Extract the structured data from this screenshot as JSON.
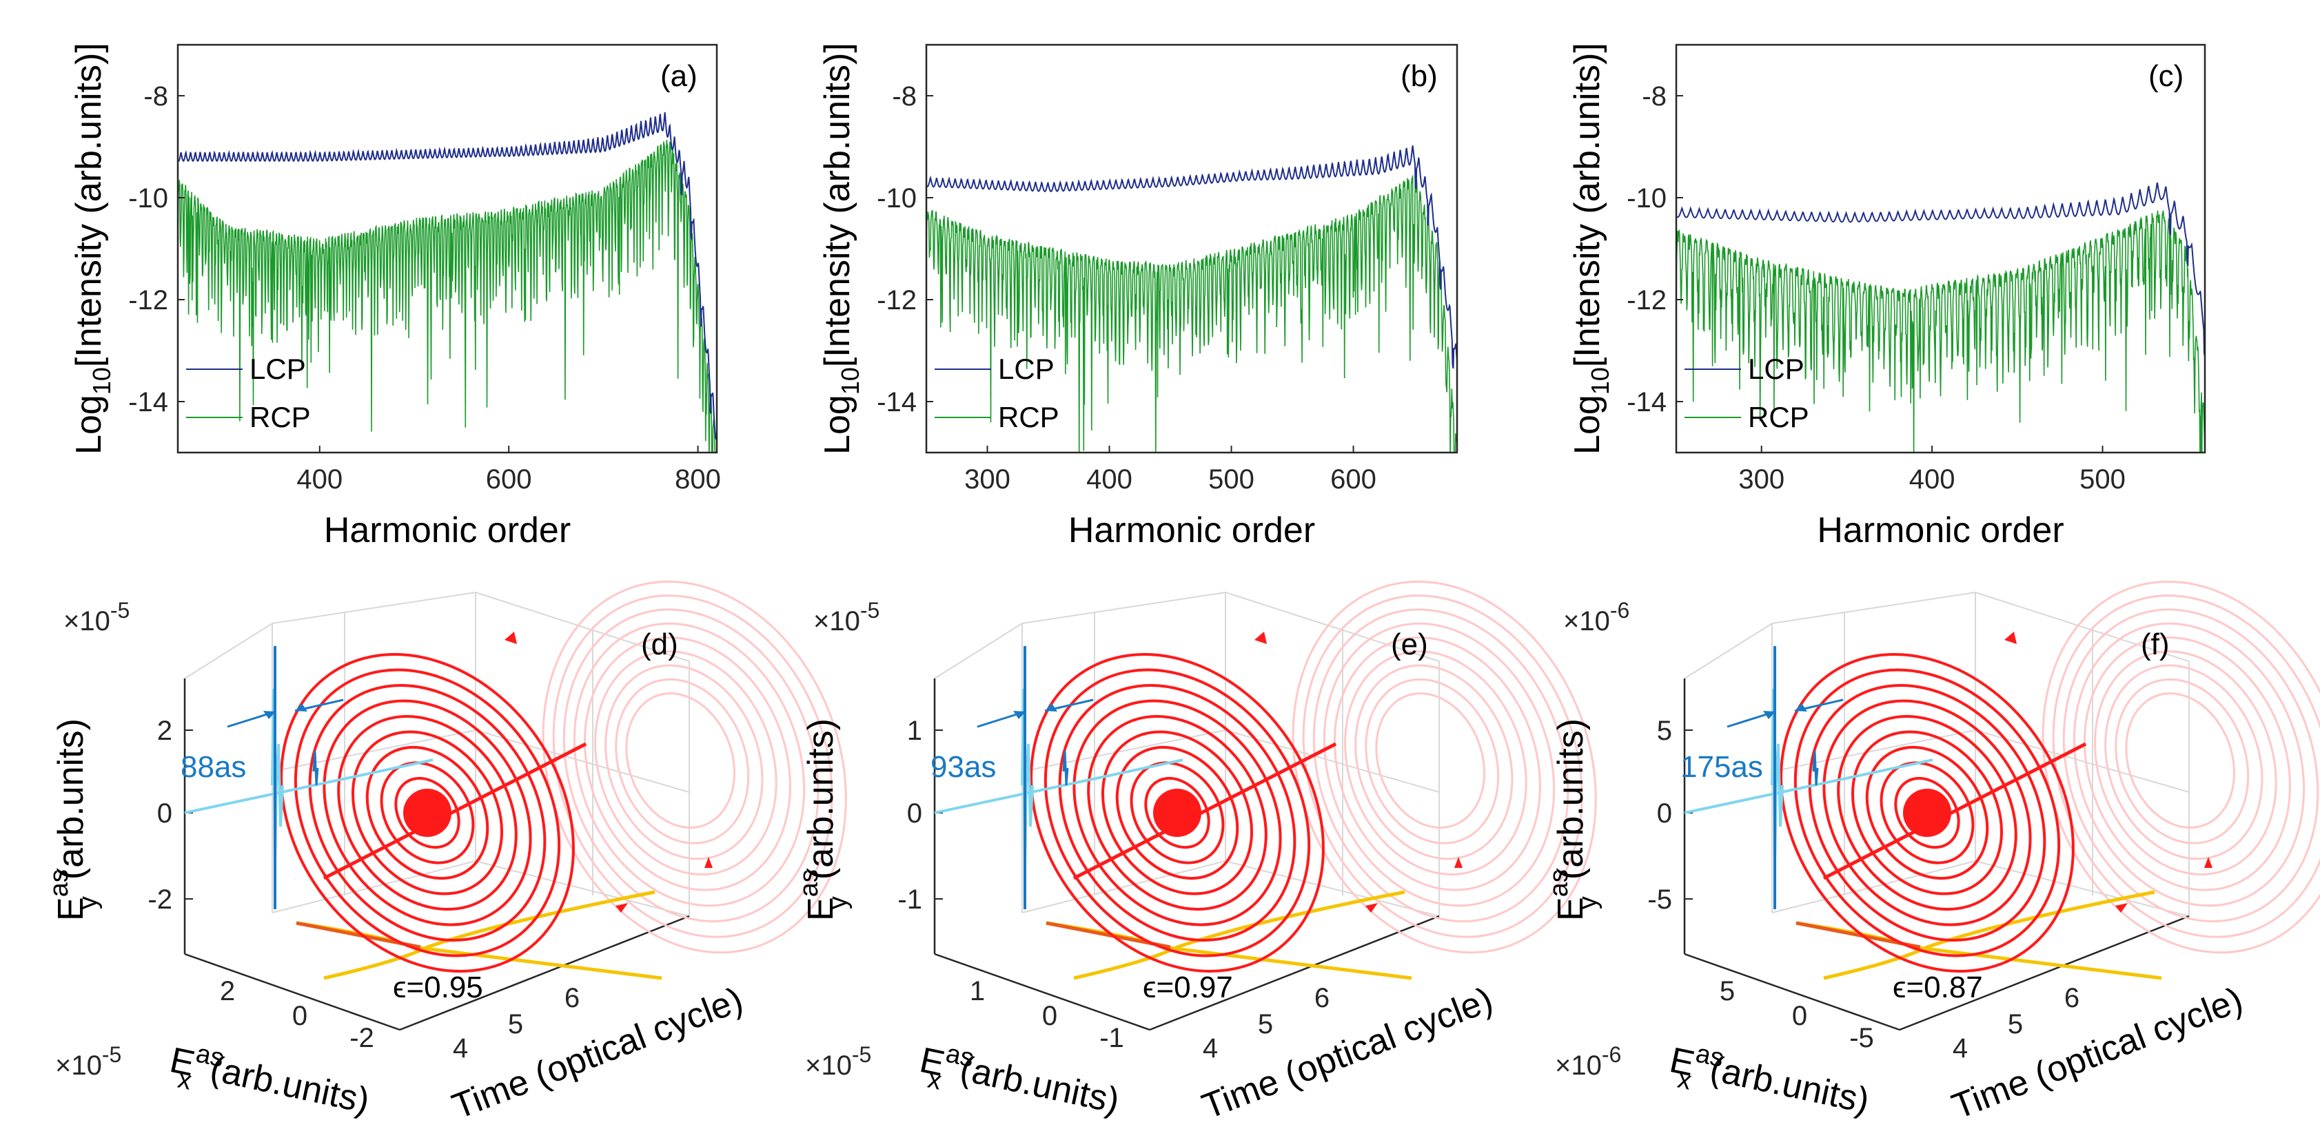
{
  "figure": {
    "top_row": [
      {
        "label": "(a)",
        "ylabel_main": "Log",
        "ylabel_sub": "10",
        "ylabel_rest": "[Intensity (arb.units)]",
        "xlabel": "Harmonic order",
        "yticks": [
          "-8",
          "-10",
          "-12",
          "-14"
        ],
        "xticks": [
          "400",
          "600",
          "800"
        ],
        "legend": [
          "LCP",
          "RCP"
        ]
      },
      {
        "label": "(b)",
        "ylabel_main": "Log",
        "ylabel_sub": "10",
        "ylabel_rest": "[Intensity (arb.units)]",
        "xlabel": "Harmonic order",
        "yticks": [
          "-8",
          "-10",
          "-12",
          "-14"
        ],
        "xticks": [
          "300",
          "400",
          "500",
          "600"
        ],
        "legend": [
          "LCP",
          "RCP"
        ]
      },
      {
        "label": "(c)",
        "ylabel_main": "Log",
        "ylabel_sub": "10",
        "ylabel_rest": "[Intensity (arb.units)]",
        "xlabel": "Harmonic order",
        "yticks": [
          "-8",
          "-10",
          "-12",
          "-14"
        ],
        "xticks": [
          "300",
          "400",
          "500"
        ],
        "legend": [
          "LCP",
          "RCP"
        ]
      }
    ],
    "bottom_row": [
      {
        "label": "(d)",
        "scale_y": "×10",
        "scale_y_exp": "-5",
        "scale_x": "×10",
        "scale_x_exp": "-5",
        "ey_label": "E",
        "ey_sup": "as",
        "ey_sub": "y",
        "ey_units": "(arb.units)",
        "ex_label": "E",
        "ex_sup": "as",
        "ex_sub": "x",
        "ex_units": "(arb.units)",
        "time_label": "Time (optical cycle)",
        "yticks": [
          "2",
          "0",
          "-2"
        ],
        "xticks": [
          "2",
          "0",
          "-2"
        ],
        "tticks": [
          "4",
          "5",
          "6"
        ],
        "pulse": "88as",
        "eps": "ϵ=0.95"
      },
      {
        "label": "(e)",
        "scale_y": "×10",
        "scale_y_exp": "-5",
        "scale_x": "×10",
        "scale_x_exp": "-5",
        "ey_label": "E",
        "ey_sup": "as",
        "ey_sub": "y",
        "ey_units": "(arb.units)",
        "ex_label": "E",
        "ex_sup": "as",
        "ex_sub": "x",
        "ex_units": "(arb.units)",
        "time_label": "Time (optical cycle)",
        "yticks": [
          "1",
          "0",
          "-1"
        ],
        "xticks": [
          "1",
          "0",
          "-1"
        ],
        "tticks": [
          "4",
          "5",
          "6"
        ],
        "pulse": "93as",
        "eps": "ϵ=0.97"
      },
      {
        "label": "(f)",
        "scale_y": "×10",
        "scale_y_exp": "-6",
        "scale_x": "×10",
        "scale_x_exp": "-6",
        "ey_label": "E",
        "ey_sup": "as",
        "ey_sub": "y",
        "ey_units": "(arb.units)",
        "ex_label": "E",
        "ex_sup": "as",
        "ex_sub": "x",
        "ex_units": "(arb.units)",
        "time_label": "Time (optical cycle)",
        "yticks": [
          "5",
          "0",
          "-5"
        ],
        "xticks": [
          "5",
          "0",
          "-5"
        ],
        "tticks": [
          "4",
          "5",
          "6"
        ],
        "pulse": "175as",
        "eps": "ϵ=0.87"
      }
    ],
    "colors": {
      "lcp": "#1f2e8c",
      "rcp": "#1a9a2a",
      "spiral": "#ff1a1a",
      "spiral_faint": "#ffc8c8",
      "pulse": "#1a79c4",
      "pulse_light": "#7fd6ee",
      "xy_proj": "#f5c400",
      "xy_proj_dark": "#e85a1a"
    }
  },
  "chart_data": [
    {
      "type": "line",
      "panel": "(a)",
      "xlabel": "Harmonic order",
      "ylabel": "Log10[Intensity (arb.units)]",
      "xlim": [
        250,
        820
      ],
      "ylim": [
        -15,
        -7
      ],
      "series": [
        {
          "name": "LCP",
          "x": [
            250,
            400,
            500,
            600,
            700,
            765,
            790,
            805,
            820
          ],
          "values": [
            -9.1,
            -9.1,
            -9.05,
            -9.0,
            -8.8,
            -8.3,
            -9.5,
            -12.0,
            -14.5
          ]
        },
        {
          "name": "RCP",
          "x": [
            250,
            300,
            400,
            500,
            600,
            700,
            770,
            790,
            805,
            820
          ],
          "values": [
            -9.6,
            -10.5,
            -10.8,
            -10.4,
            -10.2,
            -9.8,
            -8.8,
            -10.0,
            -12.5,
            -14.8
          ]
        }
      ]
    },
    {
      "type": "line",
      "panel": "(b)",
      "xlabel": "Harmonic order",
      "ylabel": "Log10[Intensity (arb.units)]",
      "xlim": [
        250,
        685
      ],
      "ylim": [
        -15,
        -7
      ],
      "series": [
        {
          "name": "LCP",
          "x": [
            250,
            350,
            450,
            550,
            620,
            650,
            665,
            685
          ],
          "values": [
            -9.6,
            -9.7,
            -9.6,
            -9.4,
            -9.2,
            -8.95,
            -10.0,
            -13.0
          ]
        },
        {
          "name": "RCP",
          "x": [
            250,
            300,
            400,
            450,
            500,
            600,
            650,
            670,
            685
          ],
          "values": [
            -10.2,
            -10.7,
            -11.2,
            -11.3,
            -11.0,
            -10.3,
            -9.5,
            -11.0,
            -14.8
          ]
        }
      ]
    },
    {
      "type": "line",
      "panel": "(c)",
      "xlabel": "Harmonic order",
      "ylabel": "Log10[Intensity (arb.units)]",
      "xlim": [
        250,
        560
      ],
      "ylim": [
        -15,
        -7
      ],
      "series": [
        {
          "name": "LCP",
          "x": [
            250,
            350,
            450,
            510,
            535,
            550,
            560
          ],
          "values": [
            -10.2,
            -10.3,
            -10.2,
            -10.0,
            -9.65,
            -10.5,
            -12.3
          ]
        },
        {
          "name": "RCP",
          "x": [
            250,
            300,
            380,
            450,
            510,
            535,
            550,
            560
          ],
          "values": [
            -10.6,
            -11.2,
            -11.8,
            -11.4,
            -10.6,
            -10.2,
            -11.0,
            -14.3
          ]
        }
      ]
    }
  ]
}
